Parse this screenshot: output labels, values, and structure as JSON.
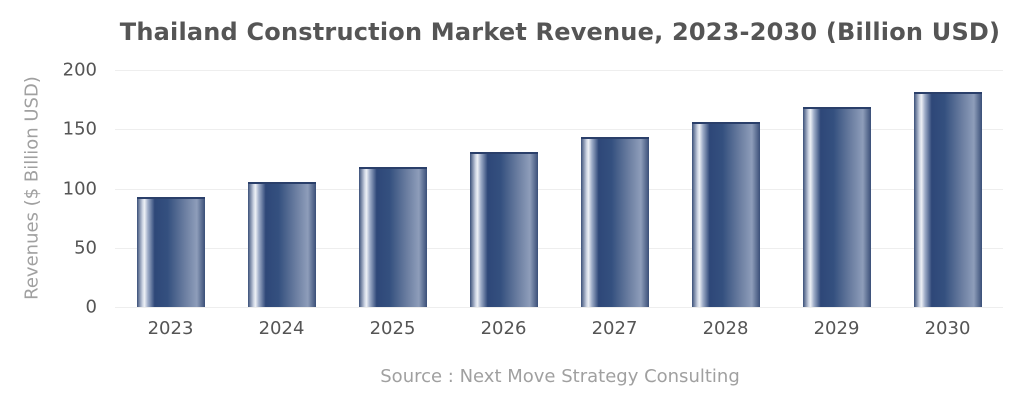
{
  "chart_data": {
    "type": "bar",
    "title": "Thailand Construction Market Revenue, 2023-2030 (Billion USD)",
    "xlabel": "",
    "ylabel": "Revenues ($ Billion USD)",
    "categories": [
      "2023",
      "2024",
      "2025",
      "2026",
      "2027",
      "2028",
      "2029",
      "2030"
    ],
    "values": [
      92.6,
      105.3,
      118.0,
      130.7,
      143.4,
      156.1,
      168.8,
      181.5
    ],
    "ylim": [
      0,
      200
    ],
    "yticks": [
      "0",
      "50",
      "100",
      "150",
      "200"
    ],
    "grid": true,
    "legend": null,
    "annotation": "Source : Next Move Strategy Consulting",
    "bar_color": "#2e4778"
  }
}
